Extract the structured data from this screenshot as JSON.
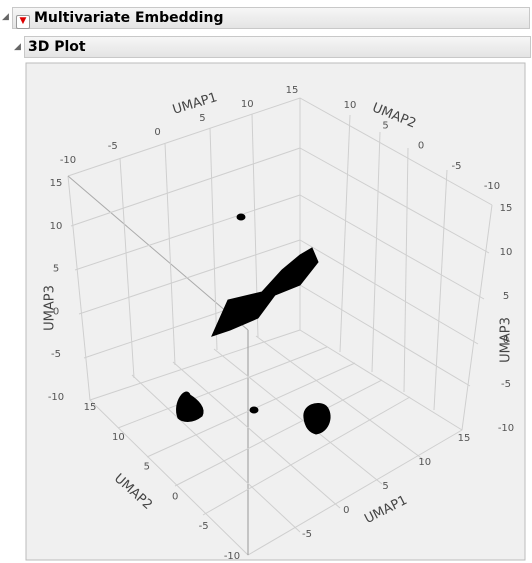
{
  "header": {
    "title": "Multivariate Embedding"
  },
  "panel": {
    "title": "3D Plot"
  },
  "plot": {
    "axes": [
      {
        "label": "UMAP1",
        "ticks": [
          "-10",
          "-5",
          "0",
          "5",
          "10",
          "15"
        ]
      },
      {
        "label": "UMAP2",
        "ticks": [
          "10",
          "5",
          "0",
          "-5",
          "-10"
        ]
      },
      {
        "label": "UMAP3",
        "ticks": [
          "15",
          "10",
          "5",
          "0",
          "-5",
          "-10"
        ]
      },
      {
        "label": "UMAP3",
        "ticks": [
          "15",
          "10",
          "5",
          "0",
          "-5",
          "-10"
        ]
      },
      {
        "label": "UMAP2",
        "ticks": [
          "15",
          "10",
          "5",
          "0",
          "-5",
          "-10"
        ]
      },
      {
        "label": "UMAP1",
        "ticks": [
          "-5",
          "0",
          "5",
          "10",
          "15"
        ]
      }
    ]
  }
}
